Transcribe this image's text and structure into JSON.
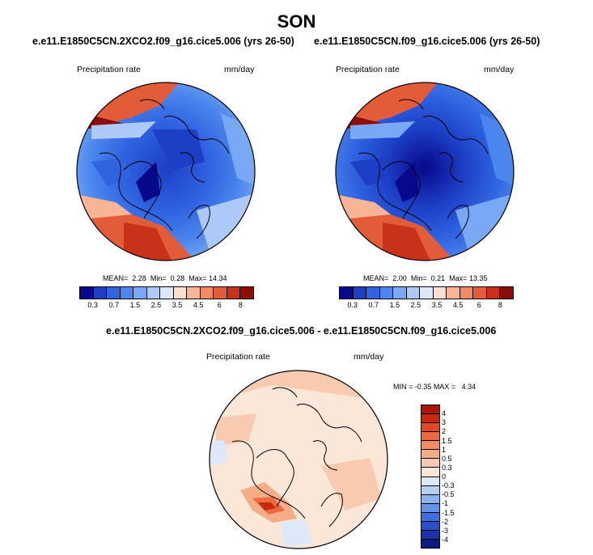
{
  "season": "SON",
  "panels": [
    {
      "title": "e.e11.E1850C5CN.2XCO2.f09_g16.cice5.006 (yrs 26-50)",
      "variable": "Precipitation rate",
      "units": "mm/day",
      "stats": {
        "mean_label": "MEAN=",
        "mean": "2.28",
        "min_label": "Min=",
        "min": "0.28",
        "max_label": "Max=",
        "max": "14.34"
      }
    },
    {
      "title": "e.e11.E1850C5CN.f09_g16.cice5.006 (yrs 26-50)",
      "variable": "Precipitation rate",
      "units": "mm/day",
      "stats": {
        "mean_label": "MEAN=",
        "mean": "2.00",
        "min_label": "Min=",
        "min": "0.21",
        "max_label": "Max=",
        "max": "13.35"
      }
    }
  ],
  "abs_colorbar": {
    "colors": [
      "#08088a",
      "#1c3fc6",
      "#2f63e0",
      "#4a86ee",
      "#79a8f5",
      "#adc9f8",
      "#dce8fb",
      "#fbe0cf",
      "#f7b596",
      "#f28a62",
      "#e35c38",
      "#c8321b",
      "#8c0c06"
    ],
    "ticks": [
      "0.3",
      "0.7",
      "1.5",
      "2.5",
      "3.5",
      "4.5",
      "6",
      "8"
    ]
  },
  "diff_panel": {
    "title": "e.e11.E1850C5CN.2XCO2.f09_g16.cice5.006 - e.e11.E1850C5CN.f09_g16.cice5.006",
    "variable": "Precipitation rate",
    "units": "mm/day",
    "stats": {
      "min_label": "MIN =",
      "min": "-0.35",
      "max_label": "MAX =",
      "max": "4.34"
    }
  },
  "diff_colorbar": {
    "colors": [
      "#a81806",
      "#c72a0f",
      "#df4a22",
      "#ec6a3e",
      "#f28c62",
      "#f5ad88",
      "#f8cbb0",
      "#fbe7d8",
      "#dde9f9",
      "#b8d0f5",
      "#8fb3f0",
      "#6693ea",
      "#3f6fdc",
      "#2a4fc8",
      "#1b33a6",
      "#0c1a84"
    ],
    "ticks": [
      "4",
      "3",
      "2",
      "1.5",
      "1",
      "0.5",
      "0.3",
      "0",
      "-0.3",
      "-0.5",
      "-1",
      "-1.5",
      "-2",
      "-3",
      "-4"
    ]
  }
}
